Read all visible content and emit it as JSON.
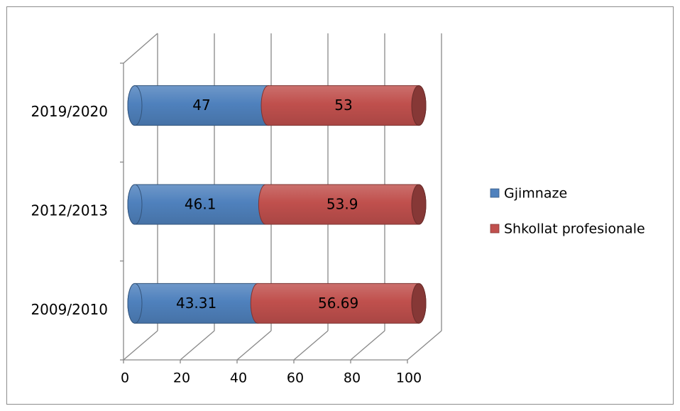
{
  "chart_data": {
    "type": "bar",
    "orientation": "horizontal",
    "stacked": true,
    "style": "3d-cylinder",
    "categories": [
      "2009/2010",
      "2012/2013",
      "2019/2020"
    ],
    "series": [
      {
        "name": "Gjimnaze",
        "values": [
          43.31,
          46.1,
          47
        ],
        "labels": [
          "43.31",
          "46.1",
          "47"
        ],
        "color": "#4f81bd"
      },
      {
        "name": "Shkollat profesionale",
        "values": [
          56.69,
          53.9,
          53
        ],
        "labels": [
          "56.69",
          "53.9",
          "53"
        ],
        "color": "#c0504d"
      }
    ],
    "xlim": [
      0,
      100
    ],
    "xticks": [
      "0",
      "20",
      "40",
      "60",
      "80",
      "100"
    ],
    "grid": "vertical",
    "legend_position": "right"
  }
}
